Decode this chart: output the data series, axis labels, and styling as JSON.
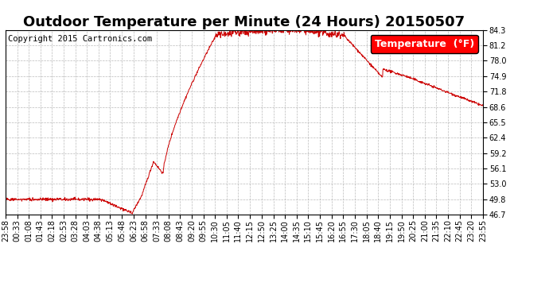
{
  "title": "Outdoor Temperature per Minute (24 Hours) 20150507",
  "copyright": "Copyright 2015 Cartronics.com",
  "legend_label": "Temperature  (°F)",
  "line_color": "#cc0000",
  "background_color": "#ffffff",
  "grid_color": "#aaaaaa",
  "ylim": [
    46.7,
    84.3
  ],
  "yticks": [
    46.7,
    49.8,
    53.0,
    56.1,
    59.2,
    62.4,
    65.5,
    68.6,
    71.8,
    74.9,
    78.0,
    81.2,
    84.3
  ],
  "x_tick_labels": [
    "23:58",
    "00:33",
    "01:08",
    "01:43",
    "02:18",
    "02:53",
    "03:28",
    "04:03",
    "04:38",
    "05:13",
    "05:48",
    "06:23",
    "06:58",
    "07:33",
    "08:08",
    "08:43",
    "09:20",
    "09:55",
    "10:30",
    "11:05",
    "11:40",
    "12:15",
    "12:50",
    "13:25",
    "14:00",
    "14:35",
    "15:10",
    "15:45",
    "16:20",
    "16:55",
    "17:30",
    "18:05",
    "18:40",
    "19:15",
    "19:50",
    "20:25",
    "21:00",
    "21:35",
    "22:10",
    "22:45",
    "23:20",
    "23:55"
  ],
  "title_fontsize": 13,
  "copyright_fontsize": 7.5,
  "tick_fontsize": 7,
  "legend_fontsize": 9
}
